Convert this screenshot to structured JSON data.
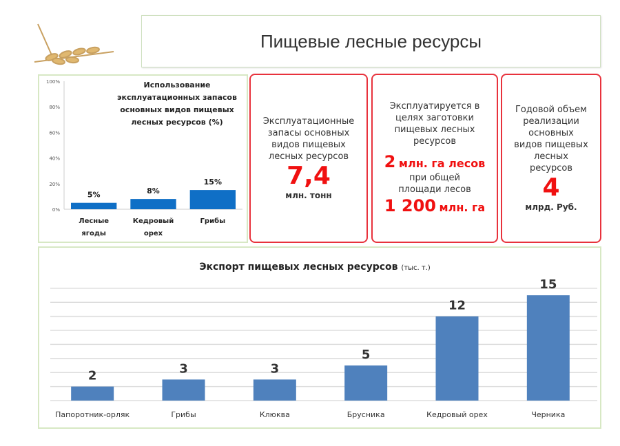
{
  "title": "Пищевые лесные ресурсы",
  "cards": [
    {
      "text": "Эксплуатационные запасы основных видов пищевых лесных ресурсов",
      "value": "7,4",
      "unit": "млн. тонн"
    },
    {
      "text": "Эксплуатируется в целях заготовки пищевых лесных ресурсов",
      "value1": "2",
      "unit1": "млн. га лесов",
      "text2": "при общей площади лесов",
      "value2": "1 200",
      "unit2": "млн. га"
    },
    {
      "text": "Годовой объем реализации основных видов пищевых лесных ресурсов",
      "value": "4",
      "unit": "млрд. Руб."
    }
  ],
  "chart_data": [
    {
      "type": "bar",
      "title": "Использование эксплуатационных запасов основных видов пищевых лесных ресурсов (%)",
      "categories": [
        "Лесные ягоды",
        "Кедровый орех",
        "Грибы"
      ],
      "values": [
        5,
        8,
        15
      ],
      "data_labels": [
        "5%",
        "8%",
        "15%"
      ],
      "yticks": [
        "0%",
        "20%",
        "40%",
        "60%",
        "80%",
        "100%"
      ],
      "ylim": [
        0,
        100
      ],
      "grid": false,
      "color": "#0f6fc6"
    },
    {
      "type": "bar",
      "title": "Экспорт пищевых лесных ресурсов",
      "title_suffix": "(тыс. т.)",
      "categories": [
        "Папоротник-орляк",
        "Грибы",
        "Клюква",
        "Брусника",
        "Кедровый орех",
        "Черника"
      ],
      "values": [
        2,
        3,
        3,
        5,
        12,
        15
      ],
      "ylim": [
        0,
        16
      ],
      "grid": true,
      "color": "#4f81bd"
    }
  ]
}
